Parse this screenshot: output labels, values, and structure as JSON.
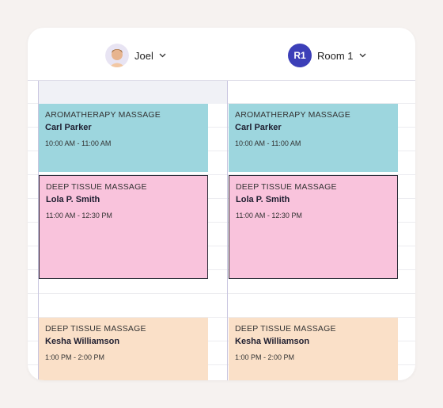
{
  "columns": [
    {
      "name": "Joel",
      "events": [
        {
          "service": "AROMATHERAPY MASSAGE",
          "client": "Carl Parker",
          "time": "10:00 AM - 11:00 AM"
        },
        {
          "service": "DEEP TISSUE MASSAGE",
          "client": "Lola P. Smith",
          "time": "11:00 AM - 12:30 PM"
        },
        {
          "service": "DEEP TISSUE MASSAGE",
          "client": "Kesha Williamson",
          "time": "1:00 PM - 2:00 PM"
        }
      ]
    },
    {
      "badge": "R1",
      "name": "Room 1",
      "events": [
        {
          "service": "AROMATHERAPY MASSAGE",
          "client": "Carl Parker",
          "time": "10:00 AM - 11:00 AM"
        },
        {
          "service": "DEEP TISSUE MASSAGE",
          "client": "Lola P. Smith",
          "time": "11:00 AM - 12:30 PM"
        },
        {
          "service": "DEEP TISSUE MASSAGE",
          "client": "Kesha Williamson",
          "time": "1:00 PM - 2:00 PM"
        }
      ]
    }
  ]
}
